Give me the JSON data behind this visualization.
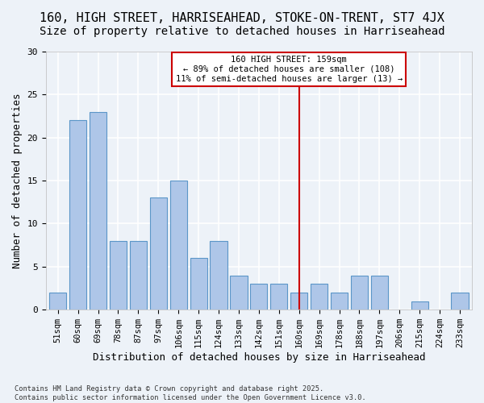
{
  "title": "160, HIGH STREET, HARRISEAHEAD, STOKE-ON-TRENT, ST7 4JX",
  "subtitle": "Size of property relative to detached houses in Harriseahead",
  "xlabel": "Distribution of detached houses by size in Harriseahead",
  "ylabel": "Number of detached properties",
  "categories": [
    "51sqm",
    "60sqm",
    "69sqm",
    "78sqm",
    "87sqm",
    "97sqm",
    "106sqm",
    "115sqm",
    "124sqm",
    "133sqm",
    "142sqm",
    "151sqm",
    "160sqm",
    "169sqm",
    "178sqm",
    "188sqm",
    "197sqm",
    "206sqm",
    "215sqm",
    "224sqm",
    "233sqm"
  ],
  "values": [
    2,
    22,
    23,
    8,
    8,
    13,
    15,
    6,
    8,
    4,
    3,
    3,
    2,
    3,
    2,
    4,
    4,
    0,
    1,
    0,
    2
  ],
  "bar_color": "#aec6e8",
  "bar_edge_color": "#5b96c8",
  "bg_color": "#edf2f8",
  "grid_color": "#ffffff",
  "vline_x_index": 12,
  "vline_color": "#cc0000",
  "annotation_text": "160 HIGH STREET: 159sqm\n← 89% of detached houses are smaller (108)\n11% of semi-detached houses are larger (13) →",
  "annotation_box_color": "#cc0000",
  "ylim": [
    0,
    30
  ],
  "yticks": [
    0,
    5,
    10,
    15,
    20,
    25,
    30
  ],
  "footer": "Contains HM Land Registry data © Crown copyright and database right 2025.\nContains public sector information licensed under the Open Government Licence v3.0.",
  "title_fontsize": 11,
  "subtitle_fontsize": 10,
  "axis_fontsize": 9,
  "tick_fontsize": 7.5
}
